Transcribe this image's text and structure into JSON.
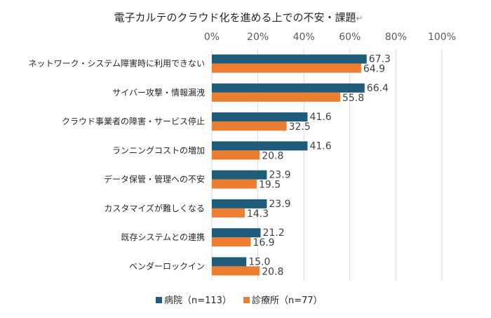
{
  "chart_data": {
    "type": "bar",
    "orientation": "horizontal",
    "title": "電子カルテのクラウド化を進める上での不安・課題",
    "title_suffix": "↵",
    "categories": [
      "ネットワーク・システム障害時に利用できない",
      "サイバー攻撃・情報漏洩",
      "クラウド事業者の障害・サービス停止",
      "ランニングコストの増加",
      "データ保管・管理への不安",
      "カスタマイズが難しくなる",
      "既存システムとの連携",
      "ベンダーロックイン"
    ],
    "series": [
      {
        "name": "病院（n=113）",
        "color": "#1f5c7a",
        "values": [
          67.3,
          66.4,
          41.6,
          41.6,
          23.9,
          23.9,
          21.2,
          15.0
        ],
        "labels": [
          "67.3",
          "66.4",
          "41.6",
          "41.6",
          "23.9",
          "23.9",
          "21.2",
          "15.0"
        ]
      },
      {
        "name": "診療所（n=77）",
        "color": "#ed7d31",
        "values": [
          64.9,
          55.8,
          32.5,
          20.8,
          19.5,
          14.3,
          16.9,
          20.8
        ],
        "labels": [
          "64.9",
          "55.8",
          "32.5",
          "20.8",
          "19.5",
          "14.3",
          "16.9",
          "20.8"
        ]
      }
    ],
    "xlim": [
      0,
      100
    ],
    "xticks": [
      "0%",
      "20%",
      "40%",
      "60%",
      "80%",
      "100%"
    ],
    "grid": true,
    "legend_position": "bottom"
  }
}
